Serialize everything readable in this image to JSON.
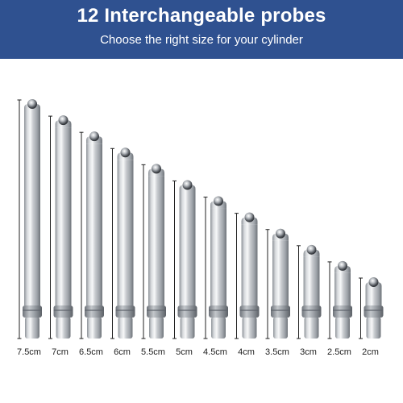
{
  "header": {
    "title": "12 Interchangeable probes",
    "subtitle": "Choose the right size for your cylinder"
  },
  "colors": {
    "banner": "#2f5190",
    "banner_text": "#ffffff",
    "probe_metal": "#c9ccd0",
    "dimension_line": "#222222"
  },
  "probes": [
    {
      "label": "7.5cm",
      "length_cm": 7.5
    },
    {
      "label": "7cm",
      "length_cm": 7
    },
    {
      "label": "6.5cm",
      "length_cm": 6.5
    },
    {
      "label": "6cm",
      "length_cm": 6
    },
    {
      "label": "5.5cm",
      "length_cm": 5.5
    },
    {
      "label": "5cm",
      "length_cm": 5
    },
    {
      "label": "4.5cm",
      "length_cm": 4.5
    },
    {
      "label": "4cm",
      "length_cm": 4
    },
    {
      "label": "3.5cm",
      "length_cm": 3.5
    },
    {
      "label": "3cm",
      "length_cm": 3
    },
    {
      "label": "2.5cm",
      "length_cm": 2.5
    },
    {
      "label": "2cm",
      "length_cm": 2
    }
  ]
}
